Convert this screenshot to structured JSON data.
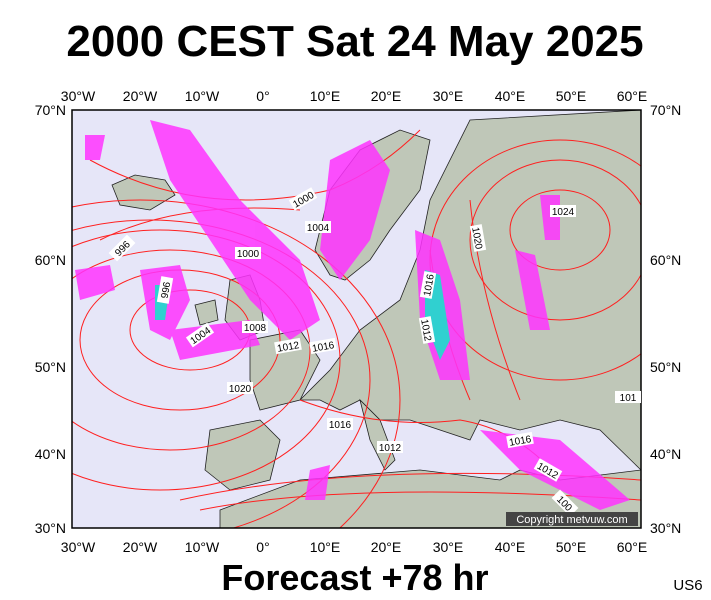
{
  "title": "2000 CEST Sat 24 May 2025",
  "footer": "Forecast +78 hr",
  "code": "US6",
  "copyright": "Copyright metvuw.com",
  "longitude_labels": [
    "30°W",
    "20°W",
    "10°W",
    "0°",
    "10°E",
    "20°E",
    "30°E",
    "40°E",
    "50°E",
    "60°E"
  ],
  "latitude_labels": [
    "70°N",
    "60°N",
    "50°N",
    "40°N",
    "30°N"
  ],
  "isobar_labels": [
    "1000",
    "1004",
    "1000",
    "996",
    "996",
    "1004",
    "1008",
    "1012",
    "1016",
    "1020",
    "1016",
    "1012",
    "1016",
    "1012",
    "1020",
    "1016",
    "1012",
    "1024",
    "101",
    "100"
  ]
}
